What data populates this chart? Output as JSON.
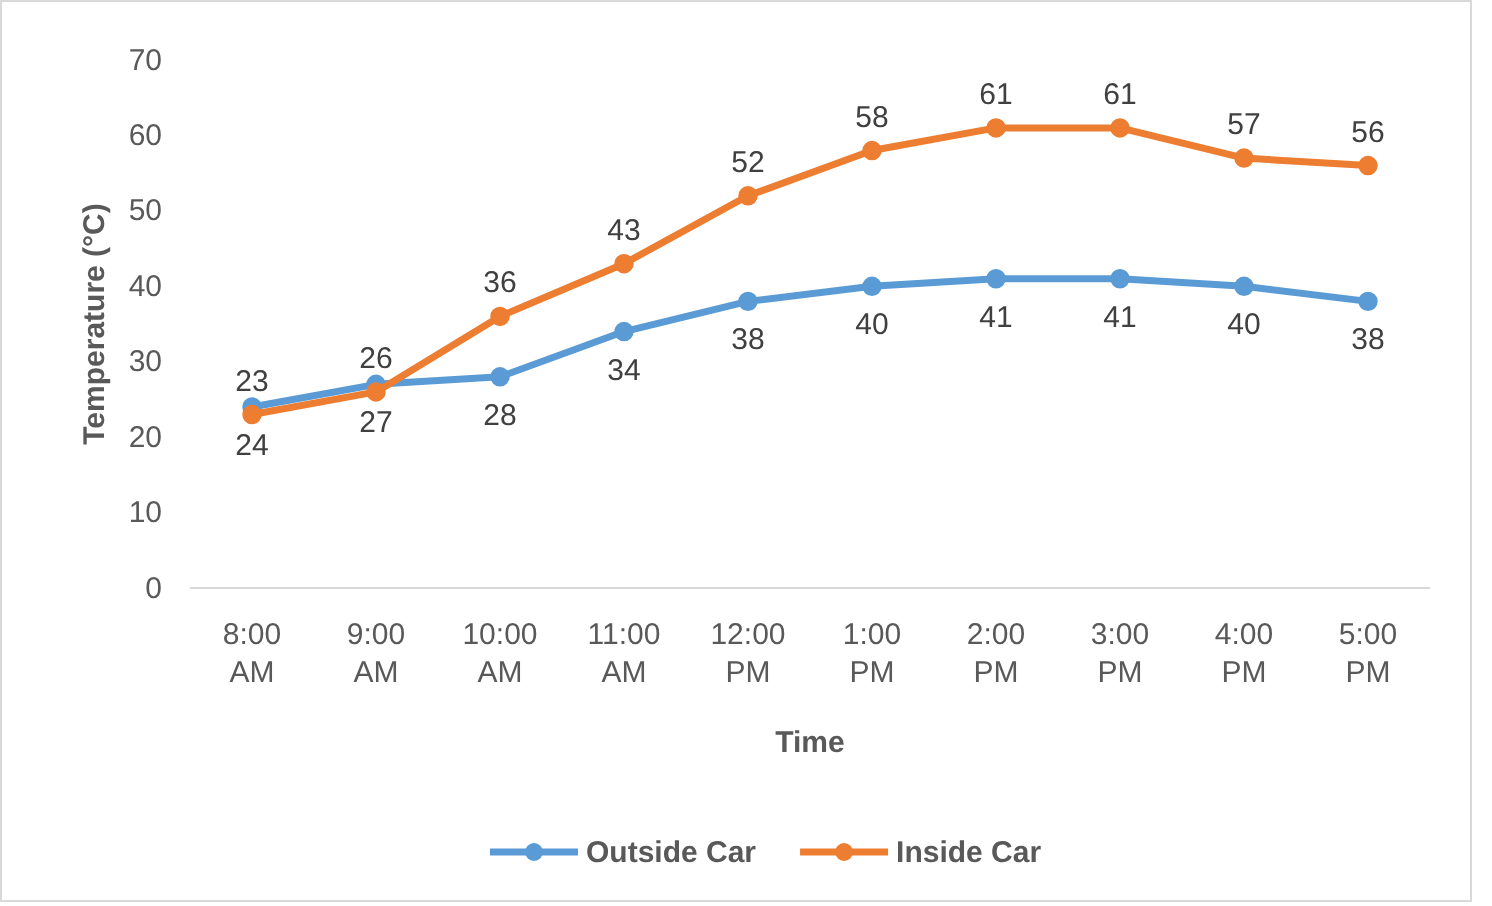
{
  "chart_data": {
    "type": "line",
    "xlabel": "Time",
    "ylabel": "Temperature (°C)",
    "categories": [
      "8:00 AM",
      "9:00 AM",
      "10:00 AM",
      "11:00 AM",
      "12:00 PM",
      "1:00 PM",
      "2:00 PM",
      "3:00 PM",
      "4:00 PM",
      "5:00 PM"
    ],
    "series": [
      {
        "name": "Outside Car",
        "color": "#5b9bd5",
        "values": [
          24,
          27,
          28,
          34,
          38,
          40,
          41,
          41,
          40,
          38
        ]
      },
      {
        "name": "Inside Car",
        "color": "#ed7d31",
        "values": [
          23,
          26,
          36,
          43,
          52,
          58,
          61,
          61,
          57,
          56
        ]
      }
    ],
    "ylim": [
      0,
      70
    ],
    "yticks": [
      0,
      10,
      20,
      30,
      40,
      50,
      60,
      70
    ],
    "grid": false,
    "legend": "bottom",
    "marker": "circle",
    "line_style": "solid",
    "data_labels": true
  }
}
